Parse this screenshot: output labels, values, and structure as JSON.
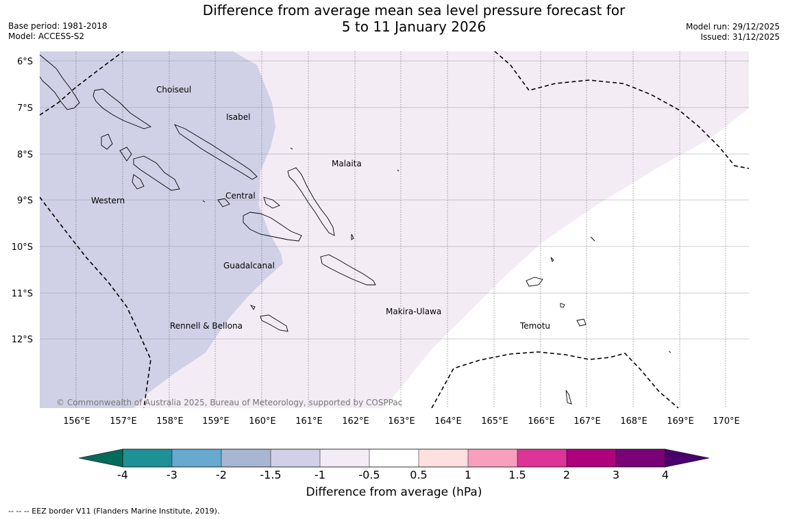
{
  "title": {
    "line1": "Difference from average mean sea level pressure forecast for",
    "line2": "5 to 11 January 2026"
  },
  "meta_left": {
    "base_period": "Base period: 1981-2018",
    "model": "Model: ACCESS-S2"
  },
  "meta_right": {
    "model_run": "Model run: 29/12/2025",
    "issued": "Issued: 31/12/2025"
  },
  "map": {
    "lon_labels": [
      "156°E",
      "157°E",
      "158°E",
      "159°E",
      "160°E",
      "161°E",
      "162°E",
      "163°E",
      "164°E",
      "165°E",
      "166°E",
      "167°E",
      "168°E",
      "169°E",
      "170°E"
    ],
    "lat_labels": [
      "6°S",
      "7°S",
      "8°S",
      "9°S",
      "10°S",
      "11°S",
      "12°S"
    ],
    "regions": [
      "Choiseul",
      "Isabel",
      "Malaita",
      "Western",
      "Central",
      "Guadalcanal",
      "Makira-Ulawa",
      "Temotu",
      "Rennell & Bellona"
    ],
    "copyright": "© Commonwealth of Australia 2025, Bureau of Meteorology, supported by COSPPac"
  },
  "colorbar": {
    "ticks": [
      "-4",
      "-3",
      "-2",
      "-1.5",
      "-1",
      "-0.5",
      "0.5",
      "1",
      "1.5",
      "2",
      "3",
      "4"
    ],
    "colors": [
      "#1e9196",
      "#67a9cf",
      "#a9b6d1",
      "#d0d1e6",
      "#f3ecf5",
      "#ffffff",
      "#fde0e0",
      "#f79fbc",
      "#dd3497",
      "#ae017e",
      "#7a0177"
    ],
    "under_color": "#016c59",
    "over_color": "#49006a",
    "label": "Difference from average (hPa)"
  },
  "legend_footnote": "--  --  -- EEZ border V11 (Flanders Marine Institute, 2019)."
}
